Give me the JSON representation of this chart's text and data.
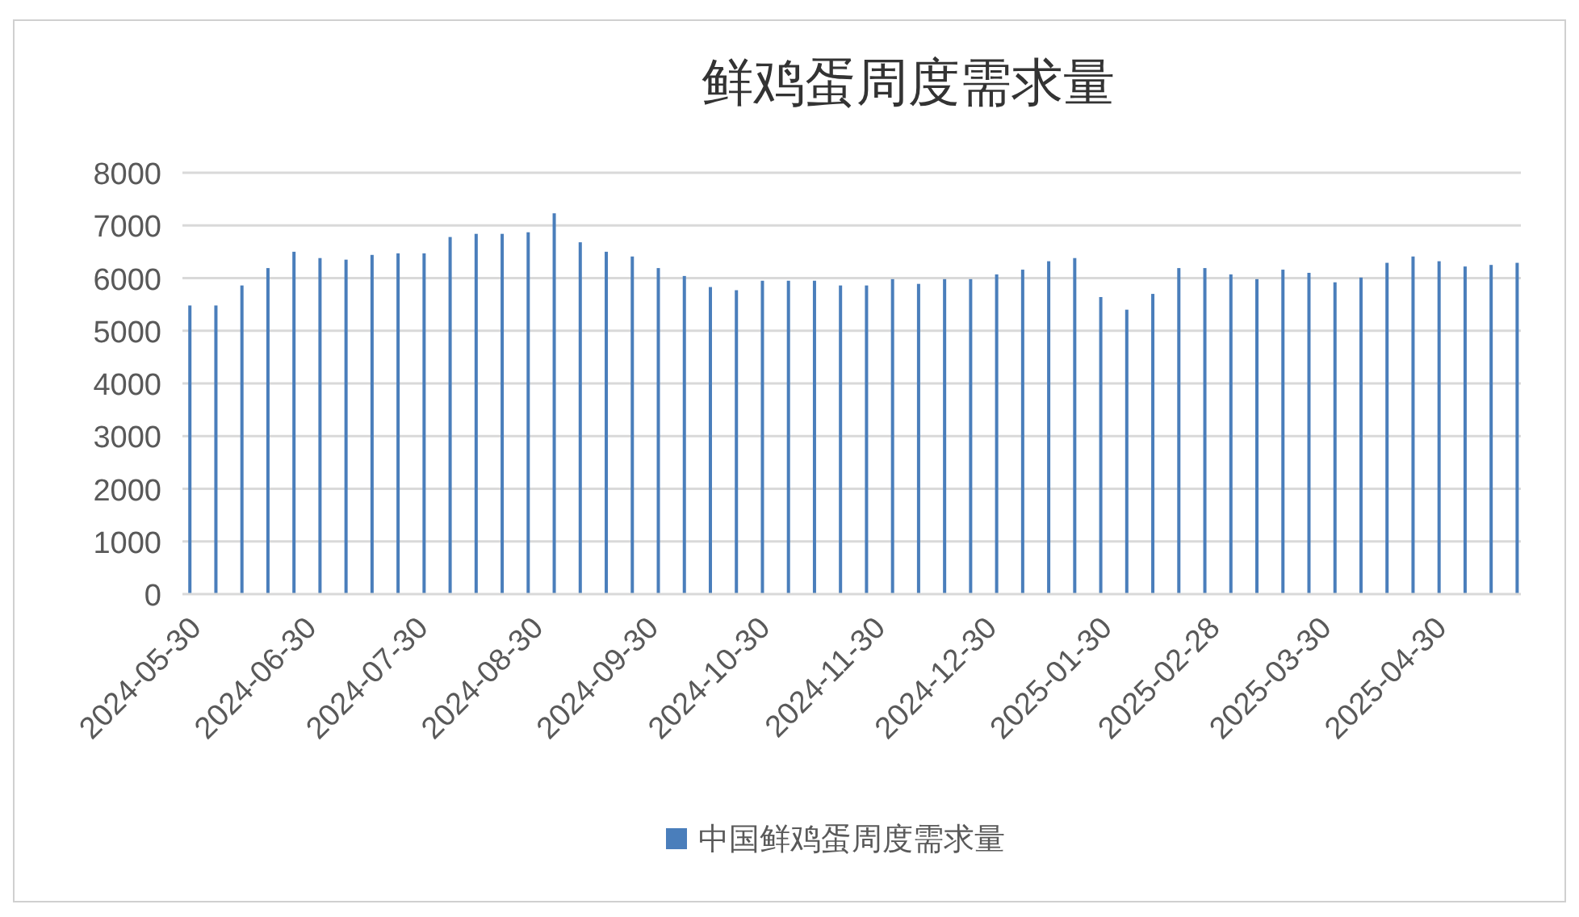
{
  "chart_data": {
    "type": "bar",
    "title": "鲜鸡蛋周度需求量",
    "x": [
      "2024-05-30",
      "2024-06-06",
      "2024-06-13",
      "2024-06-20",
      "2024-06-27",
      "2024-07-04",
      "2024-07-11",
      "2024-07-18",
      "2024-07-25",
      "2024-08-01",
      "2024-08-08",
      "2024-08-15",
      "2024-08-22",
      "2024-08-29",
      "2024-09-05",
      "2024-09-12",
      "2024-09-19",
      "2024-09-26",
      "2024-10-03",
      "2024-10-10",
      "2024-10-17",
      "2024-10-24",
      "2024-10-31",
      "2024-11-07",
      "2024-11-14",
      "2024-11-21",
      "2024-11-28",
      "2024-12-05",
      "2024-12-12",
      "2024-12-19",
      "2024-12-26",
      "2025-01-02",
      "2025-01-09",
      "2025-01-16",
      "2025-01-23",
      "2025-01-30",
      "2025-02-06",
      "2025-02-13",
      "2025-02-20",
      "2025-02-27",
      "2025-03-06",
      "2025-03-13",
      "2025-03-20",
      "2025-03-27",
      "2025-04-03",
      "2025-04-10",
      "2025-04-17",
      "2025-04-24",
      "2025-05-01",
      "2025-05-08",
      "2025-05-15",
      "2025-05-22"
    ],
    "series": [
      {
        "name": "中国鲜鸡蛋周度需求量",
        "color": "#4a7ebb",
        "values": [
          5480,
          5480,
          5860,
          6190,
          6500,
          6380,
          6350,
          6440,
          6470,
          6470,
          6780,
          6840,
          6840,
          6870,
          7230,
          6680,
          6500,
          6410,
          6190,
          6040,
          5830,
          5770,
          5950,
          5950,
          5950,
          5860,
          5860,
          5980,
          5890,
          5980,
          5980,
          6070,
          6160,
          6320,
          6380,
          5640,
          5400,
          5700,
          6190,
          6190,
          6070,
          5980,
          6160,
          6100,
          5920,
          6010,
          6290,
          6410,
          6320,
          6220,
          6250,
          6290
        ]
      }
    ],
    "xlim": [
      "2024-05-28",
      "2025-05-23"
    ],
    "xticks": [
      "2024-05-30",
      "2024-06-30",
      "2024-07-30",
      "2024-08-30",
      "2024-09-30",
      "2024-10-30",
      "2024-11-30",
      "2024-12-30",
      "2025-01-30",
      "2025-02-28",
      "2025-03-30",
      "2025-04-30"
    ],
    "ylim": [
      0,
      8000
    ],
    "yticks": [
      0,
      1000,
      2000,
      3000,
      4000,
      5000,
      6000,
      7000,
      8000
    ],
    "grid": "y",
    "legend": "bottom"
  }
}
